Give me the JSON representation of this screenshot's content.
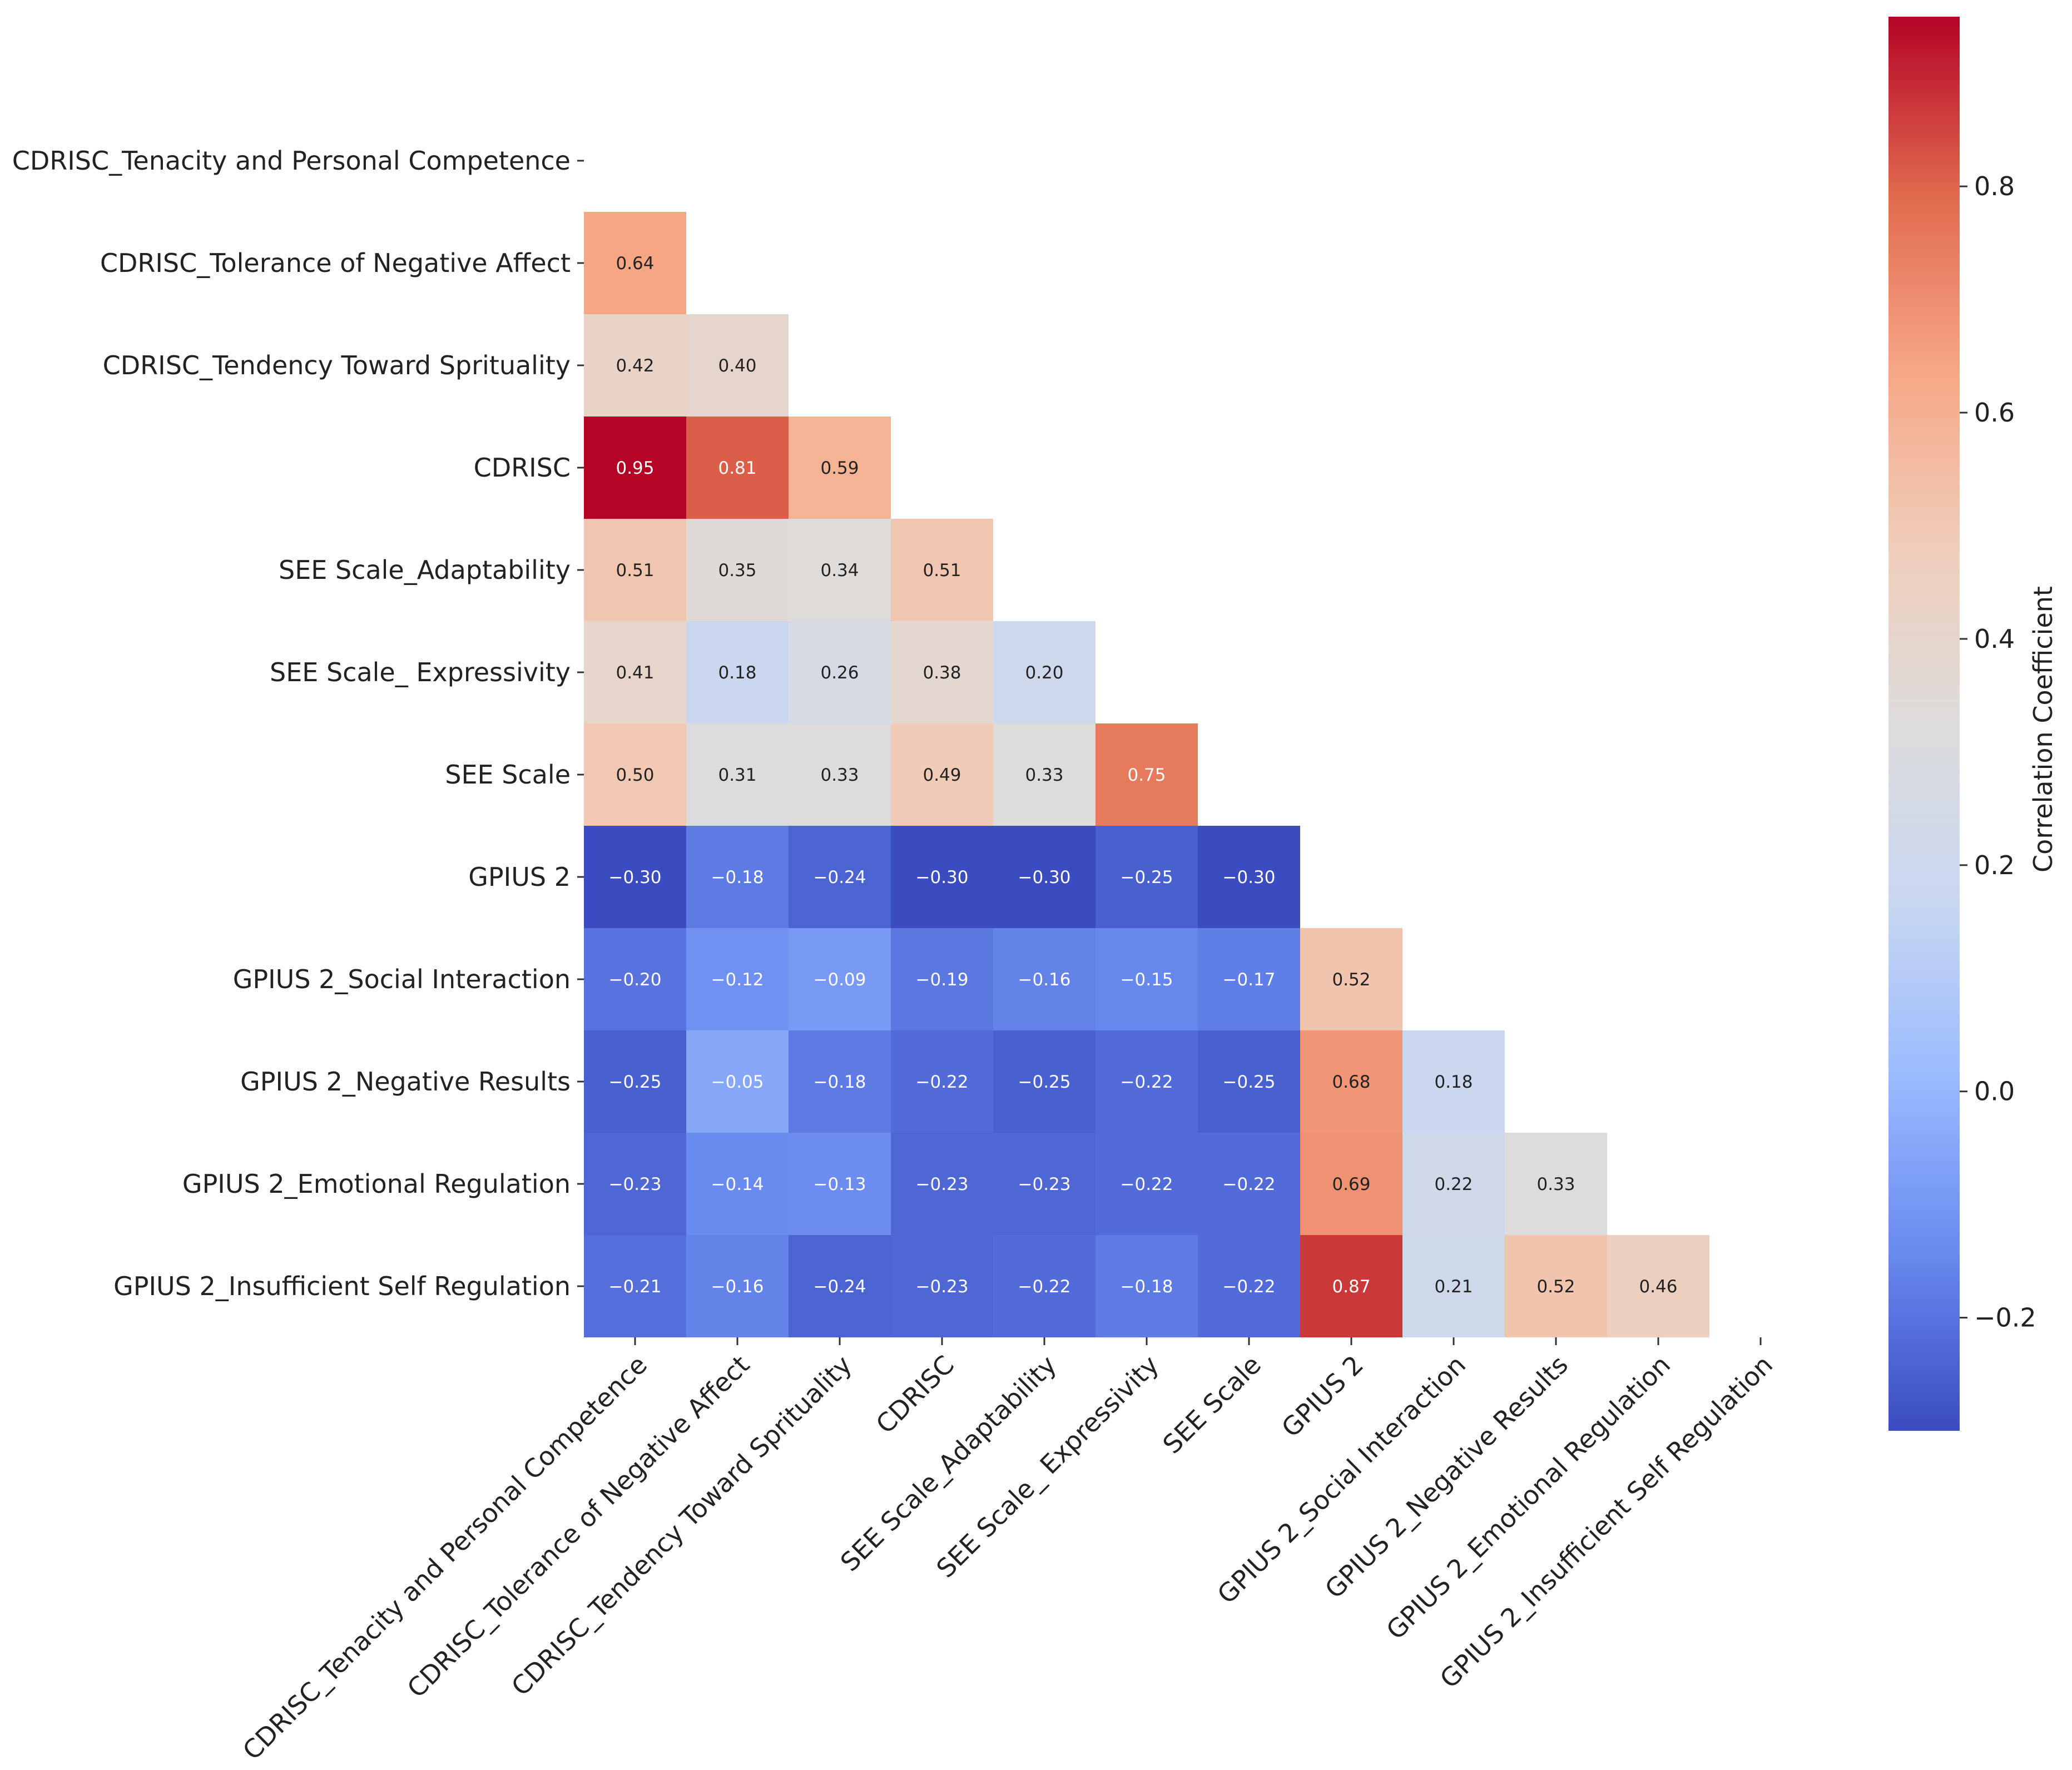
{
  "chart_data": {
    "type": "heatmap",
    "variant": "lower-triangle correlation matrix",
    "labels": [
      "CDRISC_Tenacity and Personal Competence",
      "CDRISC_Tolerance of Negative Affect",
      "CDRISC_Tendency Toward Sprituality",
      "CDRISC",
      "SEE Scale_Adaptability",
      "SEE Scale_ Expressivity",
      "SEE Scale",
      "GPIUS 2",
      "GPIUS 2_Social Interaction",
      "GPIUS 2_Negative Results",
      "GPIUS 2_Emotional Regulation",
      "GPIUS 2_Insufficient Self Regulation"
    ],
    "lower_triangle_values": [
      [],
      [
        0.64
      ],
      [
        0.42,
        0.4
      ],
      [
        0.95,
        0.81,
        0.59
      ],
      [
        0.51,
        0.35,
        0.34,
        0.51
      ],
      [
        0.41,
        0.18,
        0.26,
        0.38,
        0.2
      ],
      [
        0.5,
        0.31,
        0.33,
        0.49,
        0.33,
        0.75
      ],
      [
        -0.3,
        -0.18,
        -0.24,
        -0.3,
        -0.3,
        -0.25,
        -0.3
      ],
      [
        -0.2,
        -0.12,
        -0.09,
        -0.19,
        -0.16,
        -0.15,
        -0.17,
        0.52
      ],
      [
        -0.25,
        -0.05,
        -0.18,
        -0.22,
        -0.25,
        -0.22,
        -0.25,
        0.68,
        0.18
      ],
      [
        -0.23,
        -0.14,
        -0.13,
        -0.23,
        -0.23,
        -0.22,
        -0.22,
        0.69,
        0.22,
        0.33
      ],
      [
        -0.21,
        -0.16,
        -0.24,
        -0.23,
        -0.22,
        -0.18,
        -0.22,
        0.87,
        0.21,
        0.52,
        0.46
      ]
    ],
    "colormap": "coolwarm",
    "colorbar": {
      "title": "Correlation Coefficient",
      "range": [
        -0.3,
        0.95
      ],
      "ticks": [
        -0.2,
        0.0,
        0.2,
        0.4,
        0.6,
        0.8
      ],
      "tick_labels": [
        "−0.2",
        "0.0",
        "0.2",
        "0.4",
        "0.6",
        "0.8"
      ],
      "placement": "right"
    },
    "colormap_stops": [
      "#3b4cc0",
      "#6889ee",
      "#9abbff",
      "#c9d7f0",
      "#dddcdc",
      "#f0cdba",
      "#f6a785",
      "#e0694d",
      "#b40426"
    ],
    "annotation_light_text": "#ffffff",
    "annotation_dark_text": "#222222"
  }
}
